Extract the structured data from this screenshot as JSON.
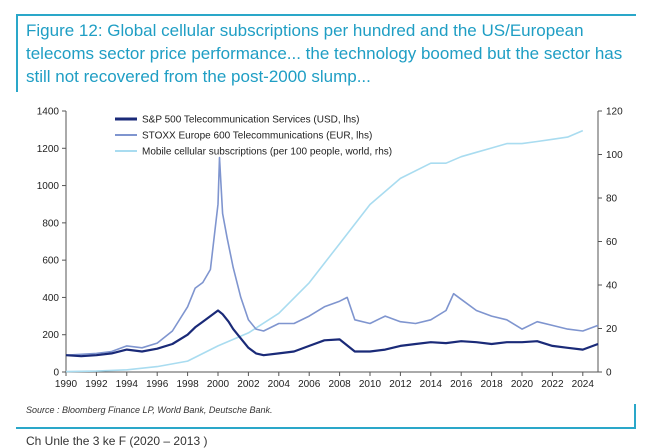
{
  "title": "Figure 12: Global cellular subscriptions per hundred and the US/European telecoms sector price performance... the technology boomed but the sector has still not recovered from the post-2000 slump...",
  "source": "Source : Bloomberg Finance LP, World Bank, Deutsche Bank.",
  "cutoff_text": "Ch    Unle   the 3 ke   F   (2020 – 2013 )",
  "colors": {
    "title": "#1f9ec4",
    "frame": "#2aa7c9",
    "sp500": "#1a2a78",
    "stoxx": "#7f95cf",
    "mobile": "#a9dcf0"
  },
  "chart_data": {
    "type": "line",
    "title": "",
    "xlabel": "",
    "ylabel_left": "",
    "ylabel_right": "",
    "xlim": [
      1990,
      2025
    ],
    "ylim_left": [
      0,
      1400
    ],
    "ylim_right": [
      0,
      120
    ],
    "x_ticks": [
      "1990",
      "1992",
      "1994",
      "1996",
      "1998",
      "2000",
      "2002",
      "2004",
      "2006",
      "2008",
      "2010",
      "2012",
      "2014",
      "2016",
      "2018",
      "2020",
      "2022",
      "2024"
    ],
    "y_left_ticks": [
      "0",
      "200",
      "400",
      "600",
      "800",
      "1000",
      "1200",
      "1400"
    ],
    "y_right_ticks": [
      "0",
      "20",
      "40",
      "60",
      "80",
      "100",
      "120"
    ],
    "legend_position": "top-left",
    "grid": false,
    "series": [
      {
        "name": "S&P 500 Telecommunication Services (USD, lhs)",
        "axis": "left",
        "x": [
          1990,
          1991,
          1992,
          1993,
          1994,
          1995,
          1996,
          1997,
          1998,
          1998.5,
          1999,
          1999.5,
          2000,
          2000.3,
          2000.7,
          2001,
          2001.5,
          2002,
          2002.5,
          2003,
          2004,
          2005,
          2006,
          2007,
          2008,
          2009,
          2010,
          2011,
          2012,
          2013,
          2014,
          2015,
          2016,
          2017,
          2018,
          2019,
          2020,
          2021,
          2022,
          2023,
          2024,
          2025
        ],
        "y": [
          90,
          85,
          90,
          100,
          120,
          110,
          125,
          150,
          200,
          240,
          270,
          300,
          330,
          310,
          270,
          230,
          180,
          130,
          100,
          90,
          100,
          110,
          140,
          170,
          175,
          110,
          110,
          120,
          140,
          150,
          160,
          155,
          165,
          160,
          150,
          160,
          160,
          165,
          140,
          130,
          120,
          150
        ]
      },
      {
        "name": "STOXX Europe 600 Telecommunications (EUR, lhs)",
        "axis": "left",
        "x": [
          1990,
          1991,
          1992,
          1993,
          1994,
          1995,
          1996,
          1997,
          1998,
          1998.5,
          1999,
          1999.5,
          2000,
          2000.1,
          2000.3,
          2000.6,
          2001,
          2001.5,
          2002,
          2002.5,
          2003,
          2004,
          2005,
          2006,
          2007,
          2008,
          2008.5,
          2009,
          2010,
          2011,
          2012,
          2013,
          2014,
          2015,
          2015.5,
          2016,
          2017,
          2018,
          2019,
          2020,
          2021,
          2022,
          2023,
          2024,
          2025
        ],
        "y": [
          90,
          95,
          100,
          110,
          140,
          130,
          155,
          220,
          350,
          450,
          480,
          550,
          900,
          1150,
          850,
          720,
          560,
          400,
          280,
          230,
          220,
          260,
          260,
          300,
          350,
          380,
          400,
          280,
          260,
          300,
          270,
          260,
          280,
          330,
          420,
          390,
          330,
          300,
          280,
          230,
          270,
          250,
          230,
          220,
          250
        ]
      },
      {
        "name": "Mobile cellular subscriptions (per 100 people, world, rhs)",
        "axis": "right",
        "x": [
          1990,
          1992,
          1994,
          1996,
          1998,
          2000,
          2002,
          2004,
          2006,
          2008,
          2010,
          2012,
          2014,
          2015,
          2016,
          2017,
          2018,
          2019,
          2020,
          2021,
          2022,
          2023,
          2024
        ],
        "y": [
          0.2,
          0.4,
          1,
          2.5,
          5,
          12,
          18,
          27,
          41,
          59,
          77,
          89,
          96,
          96,
          99,
          101,
          103,
          105,
          105,
          106,
          107,
          108,
          111
        ]
      }
    ]
  }
}
